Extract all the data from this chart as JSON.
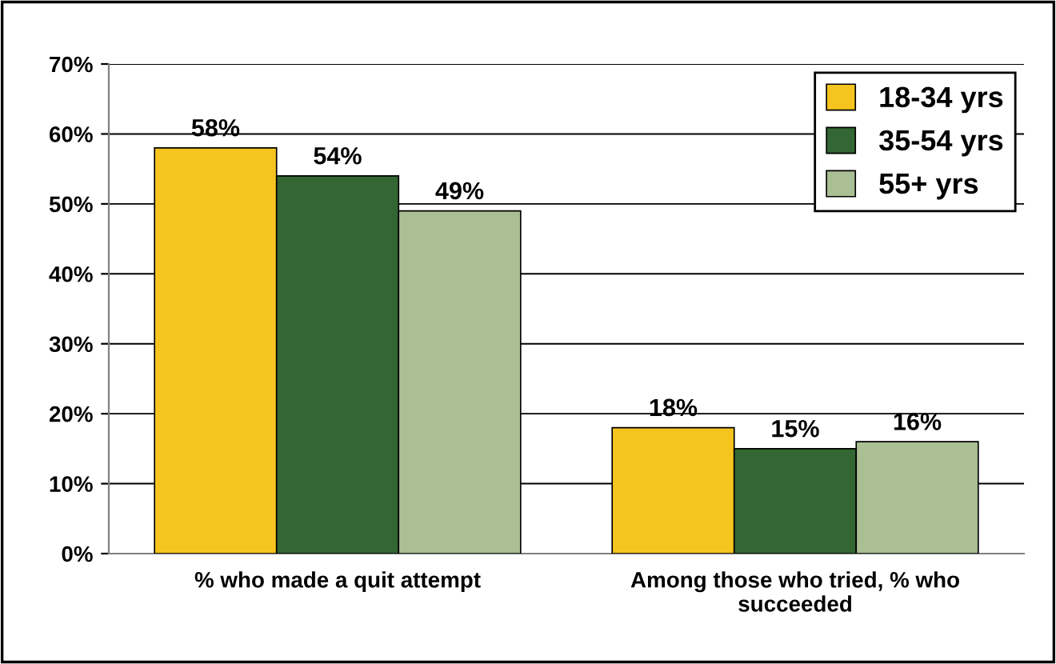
{
  "chart_data": {
    "type": "bar",
    "categories": [
      "% who made a quit attempt",
      "Among those who tried, % who\nsucceeded"
    ],
    "series": [
      {
        "name": "18-34 yrs",
        "color": "#f5c41f",
        "values": [
          58,
          18
        ],
        "value_labels": [
          "58%",
          "18%"
        ]
      },
      {
        "name": "35-54 yrs",
        "color": "#336633",
        "values": [
          54,
          15
        ],
        "value_labels": [
          "54%",
          "15%"
        ]
      },
      {
        "name": "55+ yrs",
        "color": "#aabf94",
        "values": [
          49,
          16
        ],
        "value_labels": [
          "49%",
          "16%"
        ]
      }
    ],
    "ylim": [
      0,
      70
    ],
    "yticks": [
      {
        "value": 0,
        "label": "0%"
      },
      {
        "value": 10,
        "label": "10%"
      },
      {
        "value": 20,
        "label": "20%"
      },
      {
        "value": 30,
        "label": "30%"
      },
      {
        "value": 40,
        "label": "40%"
      },
      {
        "value": 50,
        "label": "50%"
      },
      {
        "value": 60,
        "label": "60%"
      },
      {
        "value": 70,
        "label": "70%"
      }
    ],
    "grid": "y",
    "legend": "top right"
  }
}
